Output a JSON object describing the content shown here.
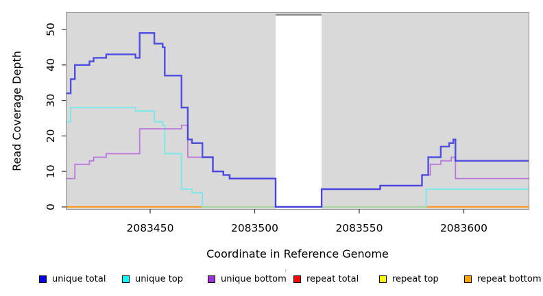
{
  "artifact_mark": "'",
  "chart_data": {
    "type": "line",
    "subtype": "step-coverage-plot",
    "title": "",
    "xlabel": "Coordinate in Reference Genome",
    "ylabel": "Read Coverage Depth",
    "xlim": [
      2083410,
      2083631
    ],
    "ylim": [
      0,
      55
    ],
    "grid": false,
    "plot_background": "#d9d9d9",
    "x_ticks": [
      {
        "value": 2083450,
        "label": "2083450"
      },
      {
        "value": 2083500,
        "label": "2083500"
      },
      {
        "value": 2083550,
        "label": "2083550"
      },
      {
        "value": 2083600,
        "label": "2083600"
      }
    ],
    "y_ticks": [
      {
        "value": 0,
        "label": "0"
      },
      {
        "value": 10,
        "label": "10"
      },
      {
        "value": 20,
        "label": "20"
      },
      {
        "value": 30,
        "label": "30"
      },
      {
        "value": 40,
        "label": "40"
      },
      {
        "value": 50,
        "label": "50"
      }
    ],
    "no_data_region": {
      "x_start": 2083510,
      "x_end": 2083532,
      "fill": "#ffffff"
    },
    "zero_overlap_segments": {
      "note": "unique top at depth 0 drawn over repeat bottom renders green",
      "color": "#a5d6a5",
      "value": 0,
      "ranges": [
        [
          2083475,
          2083510
        ],
        [
          2083532,
          2083582
        ]
      ]
    },
    "series": [
      {
        "name": "repeat total",
        "color": "#ee0000",
        "width": 2,
        "points": [
          [
            2083410,
            0
          ],
          [
            2083631,
            0
          ]
        ]
      },
      {
        "name": "repeat top",
        "color": "#ffff00",
        "width": 2,
        "points": [
          [
            2083410,
            0
          ],
          [
            2083631,
            0
          ]
        ]
      },
      {
        "name": "repeat bottom",
        "color": "#ff9d26",
        "width": 2.2,
        "points": [
          [
            2083410,
            0
          ],
          [
            2083631,
            0
          ]
        ]
      },
      {
        "name": "unique top",
        "color": "#76e9e9",
        "width": 1.8,
        "points": [
          [
            2083410,
            24
          ],
          [
            2083412,
            28
          ],
          [
            2083443,
            27
          ],
          [
            2083452,
            24
          ],
          [
            2083456,
            23
          ],
          [
            2083457,
            15
          ],
          [
            2083465,
            5
          ],
          [
            2083470,
            4
          ],
          [
            2083475,
            0
          ],
          [
            2083582,
            5
          ],
          [
            2083631,
            5
          ]
        ]
      },
      {
        "name": "unique bottom",
        "color": "#bc77dd",
        "width": 1.8,
        "points": [
          [
            2083410,
            8
          ],
          [
            2083414,
            12
          ],
          [
            2083421,
            13
          ],
          [
            2083423,
            14
          ],
          [
            2083429,
            15
          ],
          [
            2083445,
            22
          ],
          [
            2083465,
            23
          ],
          [
            2083468,
            14
          ],
          [
            2083480,
            10
          ],
          [
            2083485,
            9
          ],
          [
            2083488,
            8
          ],
          [
            2083510,
            0
          ],
          [
            2083532,
            5
          ],
          [
            2083560,
            6
          ],
          [
            2083580,
            9
          ],
          [
            2083584,
            12
          ],
          [
            2083589,
            13
          ],
          [
            2083594,
            14
          ],
          [
            2083596,
            8
          ],
          [
            2083631,
            8
          ]
        ]
      },
      {
        "name": "unique total",
        "color": "#3a3ae0",
        "width": 2.4,
        "opacity": 0.88,
        "points": [
          [
            2083410,
            32
          ],
          [
            2083412,
            36
          ],
          [
            2083414,
            40
          ],
          [
            2083421,
            41
          ],
          [
            2083423,
            42
          ],
          [
            2083429,
            43
          ],
          [
            2083443,
            42
          ],
          [
            2083445,
            49
          ],
          [
            2083452,
            46
          ],
          [
            2083456,
            45
          ],
          [
            2083457,
            37
          ],
          [
            2083465,
            28
          ],
          [
            2083468,
            19
          ],
          [
            2083470,
            18
          ],
          [
            2083475,
            14
          ],
          [
            2083480,
            10
          ],
          [
            2083485,
            9
          ],
          [
            2083488,
            8
          ],
          [
            2083510,
            0
          ],
          [
            2083532,
            5
          ],
          [
            2083560,
            6
          ],
          [
            2083580,
            9
          ],
          [
            2083583,
            14
          ],
          [
            2083589,
            17
          ],
          [
            2083593,
            18
          ],
          [
            2083595,
            19
          ],
          [
            2083596,
            13
          ],
          [
            2083631,
            13
          ]
        ]
      }
    ],
    "legend": [
      {
        "label": "unique total",
        "color": "#0000ee"
      },
      {
        "label": "unique top",
        "color": "#00ffff"
      },
      {
        "label": "unique bottom",
        "color": "#9b30d6"
      },
      {
        "label": "repeat total",
        "color": "#ff0000"
      },
      {
        "label": "repeat top",
        "color": "#ffff00"
      },
      {
        "label": "repeat bottom",
        "color": "#ffa500"
      }
    ],
    "legend_position": "bottom"
  }
}
